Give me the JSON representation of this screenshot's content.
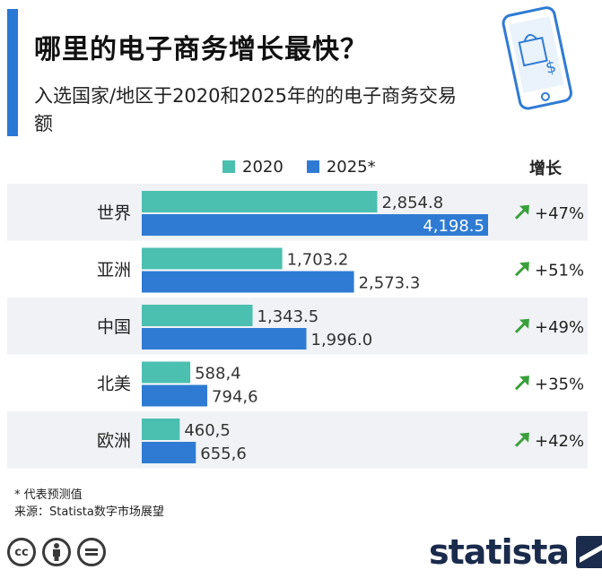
{
  "header": {
    "title": "哪里的电子商务增长最快？",
    "subtitle": "入选国家/地区于2020和2025年的的电子商务交易额",
    "growth_label": "增长"
  },
  "footer": {
    "note": "* 代表预测值",
    "source": "来源：Statista数字市场展望",
    "brand": "statista"
  },
  "icons": {
    "phone": "phone-shopping-icon",
    "cc": "creative-commons-icon",
    "by": "attribution-icon",
    "nd": "no-derivatives-icon",
    "brand": "statista-logo-icon",
    "arrow": "trend-up-arrow-icon"
  },
  "chart_data": {
    "type": "bar",
    "orientation": "horizontal",
    "categories": [
      "世界",
      "亚洲",
      "中国",
      "北美",
      "欧洲"
    ],
    "series": [
      {
        "name": "2020",
        "color": "#4bbfb0",
        "values": [
          2854.8,
          1703.2,
          1343.5,
          588.4,
          460.5
        ],
        "labels": [
          "2,854.8",
          "1,703.2",
          "1,343.5",
          "588,4",
          "460,5"
        ]
      },
      {
        "name": "2025*",
        "color": "#2f7bd3",
        "values": [
          4198.5,
          2573.3,
          1996.0,
          794.6,
          655.6
        ],
        "labels": [
          "4,198.5",
          "2,573.3",
          "1,996.0",
          "794,6",
          "655,6"
        ]
      }
    ],
    "growth": [
      "+47%",
      "+51%",
      "+49%",
      "+35%",
      "+42%"
    ],
    "xlim": [
      0,
      4198.5
    ],
    "legend_position": "top",
    "row_band_colors": [
      "#f0f2f6",
      "#ffffff"
    ],
    "arrow_color": "#3aa03a"
  }
}
